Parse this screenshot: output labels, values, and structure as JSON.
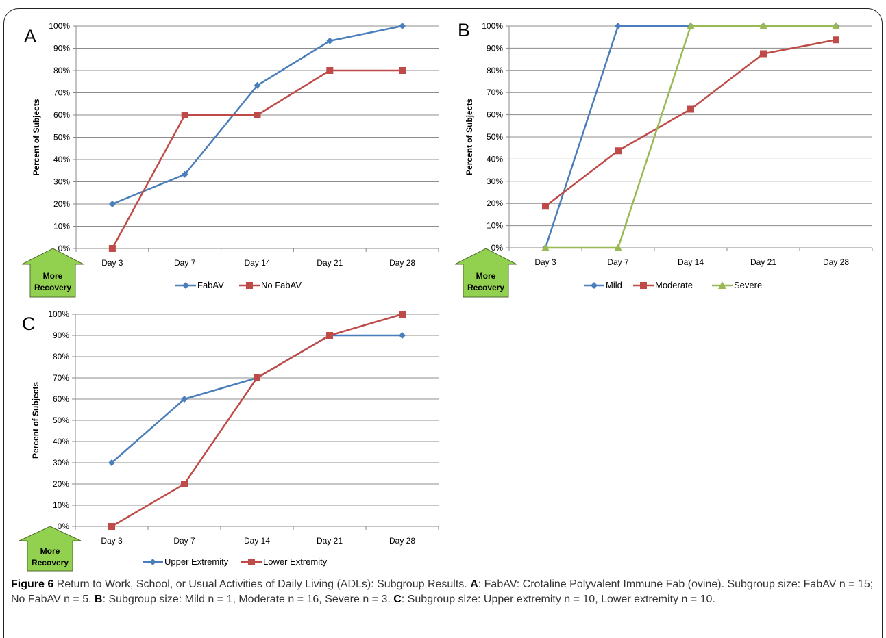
{
  "chart_data": [
    {
      "type": "line",
      "panel_label": "A",
      "ylabel": "Percent of Subjects",
      "categories": [
        "Day 3",
        "Day 7",
        "Day 14",
        "Day 21",
        "Day 28"
      ],
      "yticks": [
        "0%",
        "10%",
        "20%",
        "30%",
        "40%",
        "50%",
        "60%",
        "70%",
        "80%",
        "90%",
        "100%"
      ],
      "ylim": [
        0,
        100
      ],
      "grid": true,
      "legend": "bottom",
      "series": [
        {
          "name": "FabAV",
          "values": [
            20,
            33.3,
            73.3,
            93.3,
            100
          ],
          "color": "#4A7EBB",
          "marker": "diamond"
        },
        {
          "name": "No FabAV",
          "values": [
            0,
            60,
            60,
            80,
            80
          ],
          "color": "#BE4B48",
          "marker": "square"
        }
      ],
      "annotation": "More Recovery"
    },
    {
      "type": "line",
      "panel_label": "B",
      "ylabel": "Percent of Subjects",
      "categories": [
        "Day 3",
        "Day 7",
        "Day 14",
        "Day 21",
        "Day 28"
      ],
      "yticks": [
        "0%",
        "10%",
        "20%",
        "30%",
        "40%",
        "50%",
        "60%",
        "70%",
        "80%",
        "90%",
        "100%"
      ],
      "ylim": [
        0,
        100
      ],
      "grid": true,
      "legend": "bottom",
      "series": [
        {
          "name": "Mild",
          "values": [
            0,
            100,
            100,
            100,
            100
          ],
          "color": "#4A7EBB",
          "marker": "diamond"
        },
        {
          "name": "Moderate",
          "values": [
            18.75,
            43.75,
            62.5,
            87.5,
            93.75
          ],
          "color": "#BE4B48",
          "marker": "square"
        },
        {
          "name": "Severe",
          "values": [
            0,
            0,
            100,
            100,
            100
          ],
          "color": "#98B954",
          "marker": "triangle"
        }
      ],
      "annotation": "More Recovery"
    },
    {
      "type": "line",
      "panel_label": "C",
      "ylabel": "Percent of Subjects",
      "categories": [
        "Day 3",
        "Day 7",
        "Day 14",
        "Day 21",
        "Day 28"
      ],
      "yticks": [
        "0%",
        "10%",
        "20%",
        "30%",
        "40%",
        "50%",
        "60%",
        "70%",
        "80%",
        "90%",
        "100%"
      ],
      "ylim": [
        0,
        100
      ],
      "grid": true,
      "legend": "bottom",
      "series": [
        {
          "name": "Upper Extremity",
          "values": [
            30,
            60,
            70,
            90,
            90
          ],
          "color": "#4A7EBB",
          "marker": "diamond"
        },
        {
          "name": "Lower Extremity",
          "values": [
            0,
            20,
            70,
            90,
            100
          ],
          "color": "#BE4B48",
          "marker": "square"
        }
      ],
      "annotation": "More Recovery"
    }
  ],
  "caption": {
    "figure_label": "Figure 6",
    "title": " Return to Work, School, or Usual Activities of Daily Living (ADLs): Subgroup Results. ",
    "a_label": "A",
    "a_text": ": FabAV: Crotaline Polyvalent Immune Fab (ovine). Subgroup size: FabAV n = 15; No FabAV n = 5. ",
    "b_label": "B",
    "b_text": ": Subgroup size: Mild n = 1, Moderate n = 16, Severe n = 3. ",
    "c_label": "C",
    "c_text": ": Subgroup size: Upper extremity n = 10, Lower extremity n = 10."
  }
}
